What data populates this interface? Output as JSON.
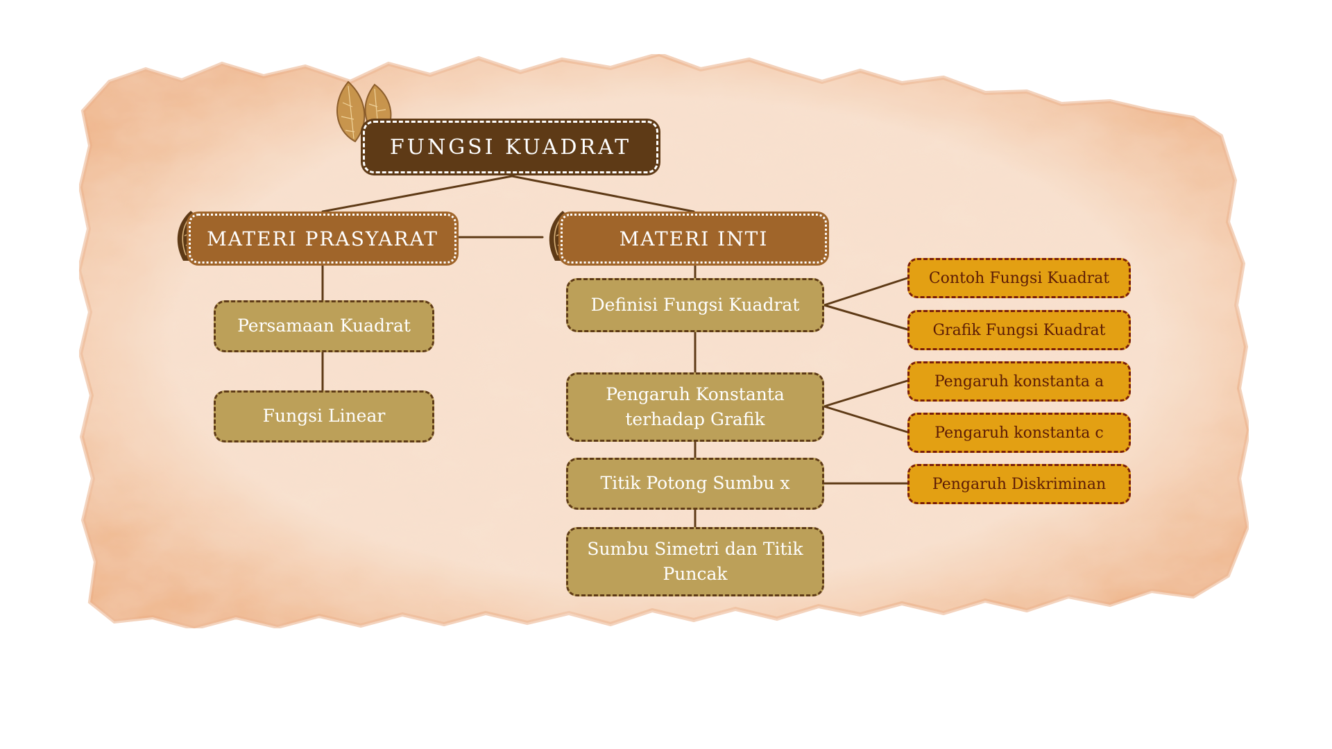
{
  "root": {
    "label": "FUNGSI KUADRAT"
  },
  "prasyarat": {
    "header": "MATERI PRASYARAT",
    "items": [
      "Persamaan Kuadrat",
      "Fungsi Linear"
    ]
  },
  "inti": {
    "header": "MATERI INTI",
    "items": [
      "Definisi Fungsi Kuadrat",
      "Pengaruh Konstanta terhadap Grafik",
      "Titik Potong Sumbu x",
      "Sumbu Simetri dan Titik Puncak"
    ],
    "sub_items": [
      "Contoh Fungsi Kuadrat",
      "Grafik Fungsi Kuadrat",
      "Pengaruh konstanta a",
      "Pengaruh konstanta c",
      "Pengaruh Diskriminan"
    ]
  },
  "colors": {
    "paper": "#f6d9c6",
    "root_fill": "#5e3a16",
    "header_fill": "#a0652a",
    "topic_fill": "#bca059",
    "sub_fill": "#e3a013",
    "connector": "#5e3a16"
  },
  "icons": [
    "filigree-leaf-icon",
    "wayang-ornament-icon"
  ]
}
